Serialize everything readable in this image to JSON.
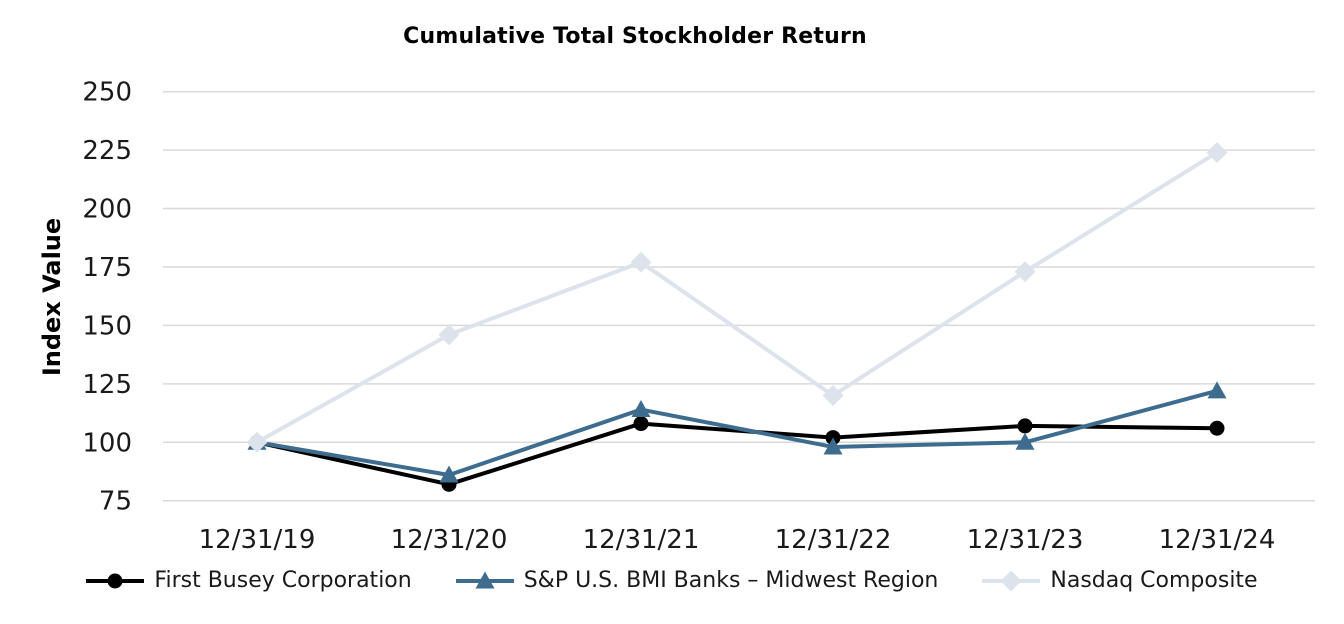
{
  "chart_data": {
    "type": "line",
    "title": "Cumulative Total Stockholder Return",
    "ylabel": "Index Value",
    "xlabel": "",
    "categories": [
      "12/31/19",
      "12/31/20",
      "12/31/21",
      "12/31/22",
      "12/31/23",
      "12/31/24"
    ],
    "ylim": [
      75,
      250
    ],
    "yticks": [
      250,
      225,
      200,
      175,
      150,
      125,
      100,
      75
    ],
    "grid": "horizontal",
    "gridline_color": "#D9D9D9",
    "text_color": "#1A1A1A",
    "legend_position": "bottom",
    "series": [
      {
        "name": "First Busey Corporation",
        "marker": "circle",
        "color": "#000000",
        "values": [
          100,
          82,
          108,
          102,
          107,
          106
        ]
      },
      {
        "name": "S&P U.S. BMI Banks – Midwest Region",
        "marker": "triangle",
        "color": "#3E6C8F",
        "values": [
          100,
          86,
          114,
          98,
          100,
          122
        ]
      },
      {
        "name": "Nasdaq Composite",
        "marker": "diamond",
        "color": "#DCE3ED",
        "values": [
          100,
          146,
          177,
          120,
          173,
          224
        ]
      }
    ]
  }
}
